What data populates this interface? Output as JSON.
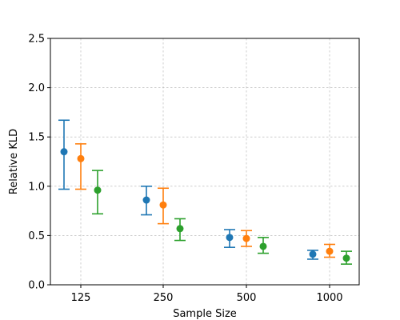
{
  "chart_data": {
    "type": "scatter",
    "title": "",
    "xlabel": "Sample Size",
    "ylabel": "Relative KLD",
    "categories": [
      "125",
      "250",
      "500",
      "1000"
    ],
    "ylim": [
      0,
      2.5
    ],
    "yticks": [
      "0.0",
      "0.5",
      "1.0",
      "1.5",
      "2.0",
      "2.5"
    ],
    "grid": true,
    "series": [
      {
        "color": "#1f77b4",
        "values": [
          1.35,
          0.86,
          0.48,
          0.31
        ],
        "lower": [
          0.97,
          0.71,
          0.38,
          0.26
        ],
        "upper": [
          1.67,
          1.0,
          0.56,
          0.35
        ]
      },
      {
        "color": "#ff7f0e",
        "values": [
          1.28,
          0.81,
          0.47,
          0.34
        ],
        "lower": [
          0.97,
          0.62,
          0.39,
          0.28
        ],
        "upper": [
          1.43,
          0.98,
          0.55,
          0.41
        ]
      },
      {
        "color": "#2ca02c",
        "values": [
          0.96,
          0.57,
          0.39,
          0.27
        ],
        "lower": [
          0.72,
          0.45,
          0.32,
          0.21
        ],
        "upper": [
          1.16,
          0.67,
          0.48,
          0.34
        ]
      }
    ]
  }
}
